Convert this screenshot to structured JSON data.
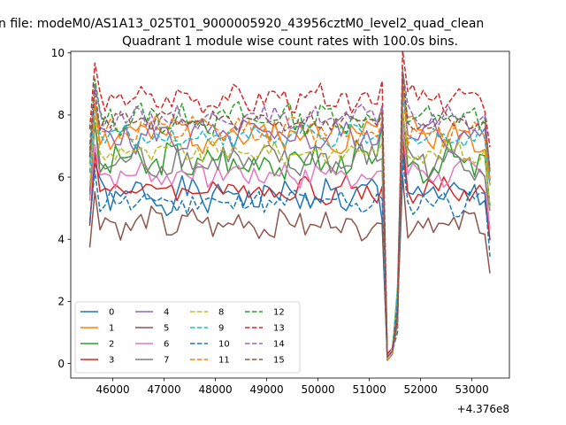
{
  "figure": {
    "suptitle": "n file: modeM0/AS1A13_025T01_9000005920_43956cztM0_level2_quad_clean",
    "title": "Quadrant 1 module wise count rates with 100.0s bins.",
    "offset_label": "+4.376e8"
  },
  "chart_data": {
    "type": "line",
    "title": "Quadrant 1 module wise count rates with 100.0s bins.",
    "xlabel": "",
    "ylabel": "",
    "x_offset": 437600000,
    "xlim": [
      45180,
      53730
    ],
    "ylim": [
      -0.47,
      10.05
    ],
    "x_ticks": [
      46000,
      47000,
      48000,
      49000,
      50000,
      51000,
      52000,
      53000
    ],
    "y_ticks": [
      0,
      2,
      4,
      6,
      8,
      10
    ],
    "grid": false,
    "legend": {
      "placement": "lower-left",
      "columns": 4
    },
    "x_start": 45550,
    "x_step": 100,
    "n_points": 79,
    "series": [
      {
        "name": "0",
        "color": "#1f77b4",
        "dash": "solid",
        "base": 5.4,
        "amp": 0.45,
        "seed": 1,
        "gap": [
          4.6,
          0.3,
          1.7
        ]
      },
      {
        "name": "1",
        "color": "#ff7f0e",
        "dash": "solid",
        "base": 7.4,
        "amp": 0.45,
        "seed": 2,
        "gap": [
          8.3,
          0.2,
          2.2
        ]
      },
      {
        "name": "2",
        "color": "#2ca02c",
        "dash": "solid",
        "base": 6.5,
        "amp": 0.5,
        "seed": 3,
        "gap": [
          7.7,
          0.2,
          1.3
        ]
      },
      {
        "name": "3",
        "color": "#d62728",
        "dash": "solid",
        "base": 5.6,
        "amp": 0.35,
        "seed": 4,
        "gap": [
          5.7,
          0.2,
          1.8
        ]
      },
      {
        "name": "4",
        "color": "#9467bd",
        "dash": "solid",
        "base": 7.3,
        "amp": 0.45,
        "seed": 5,
        "gap": [
          7.7,
          0.1,
          2.1
        ]
      },
      {
        "name": "5",
        "color": "#8c564b",
        "dash": "solid",
        "base": 4.5,
        "amp": 0.4,
        "seed": 6,
        "gap": [
          4.5,
          0.2,
          1.7
        ]
      },
      {
        "name": "6",
        "color": "#e377c2",
        "dash": "solid",
        "base": 6.1,
        "amp": 0.35,
        "seed": 7,
        "gap": [
          6.2,
          0.3,
          2.1
        ]
      },
      {
        "name": "7",
        "color": "#7f7f7f",
        "dash": "solid",
        "base": 6.5,
        "amp": 0.45,
        "seed": 8,
        "gap": [
          6.6,
          0.2,
          2.3
        ]
      },
      {
        "name": "8",
        "color": "#bcbd22",
        "dash": "dashed",
        "base": 6.8,
        "amp": 0.3,
        "seed": 9,
        "gap": [
          7.1,
          0.2,
          2.5
        ]
      },
      {
        "name": "9",
        "color": "#17becf",
        "dash": "dashed",
        "base": 7.3,
        "amp": 0.3,
        "seed": 10,
        "gap": [
          7.4,
          0.2,
          2.4
        ]
      },
      {
        "name": "10",
        "color": "#1f77b4",
        "dash": "dashed",
        "base": 5.2,
        "amp": 0.35,
        "seed": 11,
        "gap": [
          5.3,
          0.2,
          1.9
        ]
      },
      {
        "name": "11",
        "color": "#ff7f0e",
        "dash": "dashed",
        "base": 7.5,
        "amp": 0.35,
        "seed": 12,
        "gap": [
          7.8,
          0.1,
          1.5
        ]
      },
      {
        "name": "12",
        "color": "#2ca02c",
        "dash": "dashed",
        "base": 7.9,
        "amp": 0.4,
        "seed": 13,
        "gap": [
          8.1,
          0.2,
          1.0
        ]
      },
      {
        "name": "13",
        "color": "#d62728",
        "dash": "dashed",
        "base": 8.5,
        "amp": 0.35,
        "seed": 14,
        "gap": [
          9.1,
          0.3,
          1.4
        ]
      },
      {
        "name": "14",
        "color": "#9467bd",
        "dash": "dashed",
        "base": 7.9,
        "amp": 0.3,
        "seed": 15,
        "gap": [
          8.3,
          0.2,
          1.2
        ]
      },
      {
        "name": "15",
        "color": "#8c564b",
        "dash": "dashed",
        "base": 7.8,
        "amp": 0.25,
        "seed": 16,
        "gap": [
          8.0,
          0.2,
          1.6
        ]
      }
    ]
  }
}
